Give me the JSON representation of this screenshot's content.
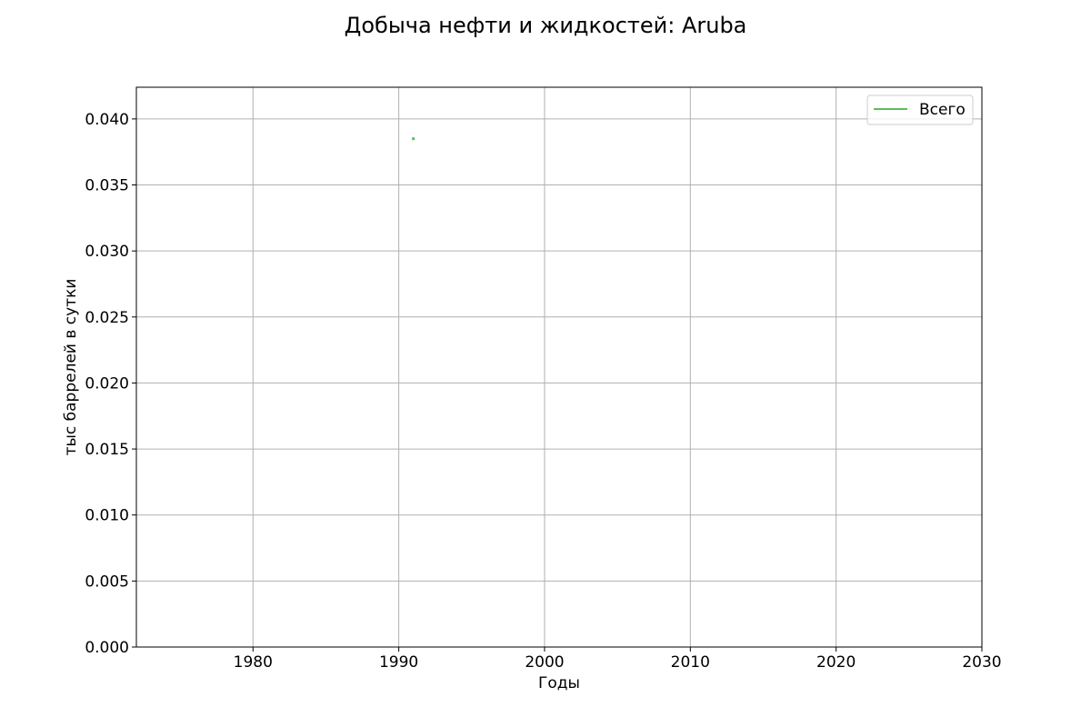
{
  "chart_data": {
    "type": "line",
    "title": "Добыча нефти и жидкостей: Aruba",
    "xlabel": "Годы",
    "ylabel": "тыс баррелей в сутки",
    "xlim": [
      1972,
      2030
    ],
    "ylim": [
      0,
      0.0424
    ],
    "x_ticks": [
      1980,
      1990,
      2000,
      2010,
      2020,
      2030
    ],
    "x_tick_labels": [
      "1980",
      "1990",
      "2000",
      "2010",
      "2020",
      "2030"
    ],
    "y_ticks": [
      0,
      0.005,
      0.01,
      0.015,
      0.02,
      0.025,
      0.03,
      0.035,
      0.04
    ],
    "y_tick_labels": [
      "0.000",
      "0.005",
      "0.010",
      "0.015",
      "0.020",
      "0.025",
      "0.030",
      "0.035",
      "0.040"
    ],
    "grid": true,
    "legend_position": "top-right",
    "series": [
      {
        "name": "Всего",
        "color": "#5bbf5b",
        "points": [
          {
            "x": 1991,
            "y": 0.0385
          }
        ]
      }
    ]
  }
}
